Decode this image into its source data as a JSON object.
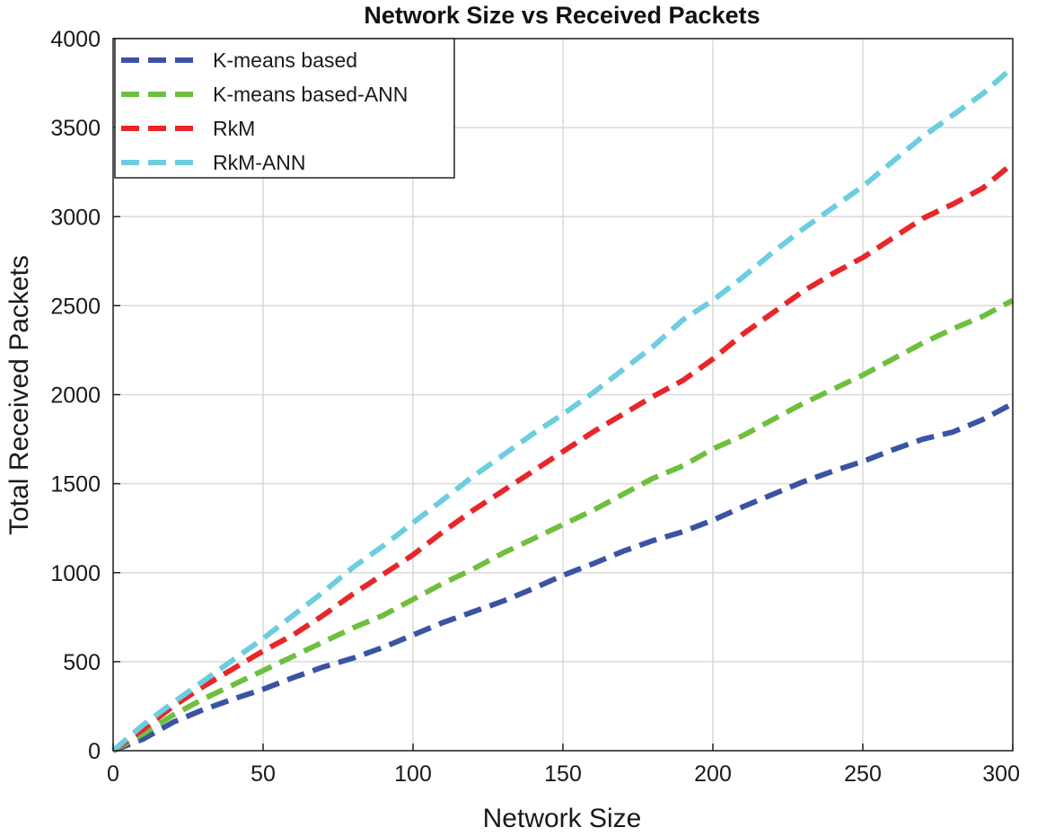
{
  "chart_data": {
    "type": "line",
    "title": "Network Size vs Received Packets",
    "xlabel": "Network Size",
    "ylabel": "Total Received Packets",
    "xlim": [
      0,
      300
    ],
    "ylim": [
      0,
      4000
    ],
    "xticks": [
      0,
      50,
      100,
      150,
      200,
      250,
      300
    ],
    "yticks": [
      0,
      500,
      1000,
      1500,
      2000,
      2500,
      3000,
      3500,
      4000
    ],
    "grid": true,
    "legend_position": "top-left",
    "x": [
      0,
      10,
      20,
      30,
      40,
      50,
      60,
      70,
      80,
      90,
      100,
      110,
      120,
      130,
      140,
      150,
      160,
      170,
      180,
      190,
      200,
      210,
      220,
      230,
      240,
      250,
      260,
      270,
      280,
      290,
      300
    ],
    "series": [
      {
        "name": "K-means based",
        "color": "#3a53a4",
        "values": [
          0,
          65,
          160,
          230,
          290,
          345,
          410,
          470,
          520,
          580,
          650,
          720,
          780,
          840,
          910,
          985,
          1050,
          1120,
          1180,
          1230,
          1295,
          1370,
          1440,
          1510,
          1570,
          1625,
          1690,
          1750,
          1790,
          1860,
          1950
        ]
      },
      {
        "name": "K-means based-ANN",
        "color": "#6fbf3f",
        "values": [
          0,
          95,
          200,
          290,
          370,
          450,
          530,
          610,
          690,
          760,
          850,
          940,
          1020,
          1110,
          1190,
          1270,
          1350,
          1440,
          1530,
          1600,
          1695,
          1770,
          1860,
          1950,
          2030,
          2110,
          2200,
          2290,
          2370,
          2440,
          2530
        ]
      },
      {
        "name": "RkM",
        "color": "#e8262a",
        "values": [
          0,
          120,
          250,
          360,
          460,
          560,
          650,
          760,
          880,
          990,
          1100,
          1230,
          1350,
          1460,
          1570,
          1680,
          1790,
          1890,
          1990,
          2080,
          2200,
          2340,
          2460,
          2580,
          2680,
          2770,
          2880,
          2990,
          3070,
          3160,
          3300
        ]
      },
      {
        "name": "RkM-ANN",
        "color": "#6ccde0",
        "values": [
          0,
          145,
          270,
          390,
          510,
          630,
          760,
          890,
          1030,
          1150,
          1280,
          1410,
          1540,
          1660,
          1780,
          1890,
          2010,
          2140,
          2270,
          2420,
          2530,
          2660,
          2800,
          2930,
          3050,
          3170,
          3310,
          3450,
          3570,
          3690,
          3840
        ]
      }
    ]
  }
}
